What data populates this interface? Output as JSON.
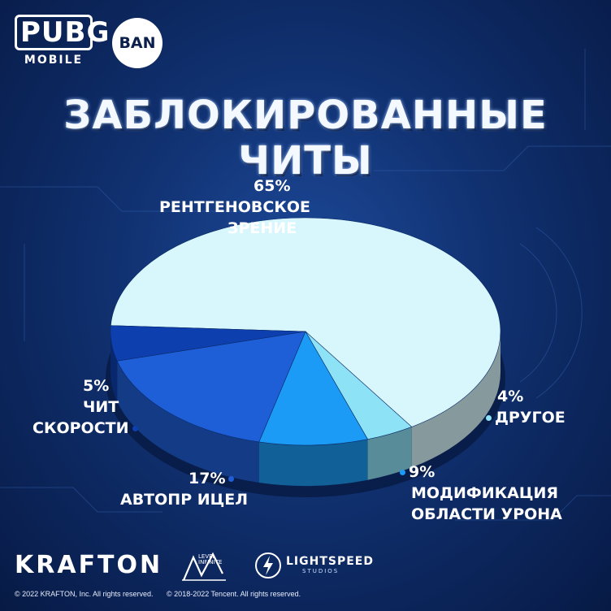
{
  "header": {
    "logo_word": "PUBG",
    "logo_sub": "MOBILE",
    "badge": "BAN"
  },
  "title": "ЗАБЛОКИРОВАННЫЕ ЧИТЫ",
  "chart_data": {
    "type": "pie",
    "title": "ЗАБЛОКИРОВАННЫЕ ЧИТЫ",
    "slices": [
      {
        "pct_label": "65%",
        "line1": "РЕНТГЕНОВСКОЕ",
        "line2": "ЗРЕНИЕ",
        "value": 65,
        "color": "#d8f7fc"
      },
      {
        "pct_label": "4%",
        "line1": "ДРУГОЕ",
        "line2": "",
        "value": 4,
        "color": "#8ee2f6"
      },
      {
        "pct_label": "9%",
        "line1": "МОДИФИКАЦИЯ",
        "line2": "ОБЛАСТИ УРОНА",
        "value": 9,
        "color": "#1b9bf5"
      },
      {
        "pct_label": "17%",
        "line1": "АВТОПР ИЦЕЛ",
        "line2": "",
        "value": 17,
        "color": "#1e5fd8"
      },
      {
        "pct_label": "5%",
        "line1": "ЧИТ",
        "line2": "СКОРОСТИ",
        "value": 5,
        "color": "#0e3fae"
      }
    ]
  },
  "footer": {
    "brand": "KRAFTON",
    "level_text": "LEVEL INFINITE",
    "studio": "LIGHTSPEED",
    "studio_sub": "STUDIOS",
    "copyright_1": "© 2022 KRAFTON, Inc. All rights reserved.",
    "copyright_2": "© 2018-2022 Tencent. All rights reserved."
  }
}
